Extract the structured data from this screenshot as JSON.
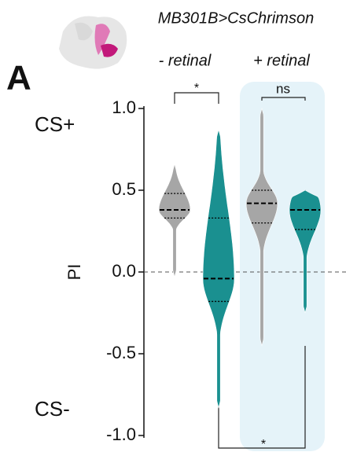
{
  "chart_data": {
    "type": "violin",
    "title": "MB301B>CsChrimson",
    "panel_label": "A",
    "group_labels": [
      "- retinal",
      "+ retinal"
    ],
    "y_label": "PI",
    "top_annotation": "CS+",
    "top_annotation_color": "#d7301f",
    "bottom_annotation": "CS-",
    "ylim": [
      -1,
      1
    ],
    "yticks": [
      {
        "value": 1,
        "label": "1.0"
      },
      {
        "value": 0.5,
        "label": "0.5"
      },
      {
        "value": 0,
        "label": "0.0"
      },
      {
        "value": -0.5,
        "label": "-0.5"
      },
      {
        "value": -1,
        "label": "-1.0"
      }
    ],
    "reference_line": 0,
    "violins": [
      {
        "color": "#a6a6a6",
        "min": -0.03,
        "q1": 0.33,
        "median": 0.38,
        "q3": 0.48,
        "max": 0.66
      },
      {
        "color": "#1a9090",
        "min": -0.83,
        "q1": -0.18,
        "median": -0.04,
        "q3": 0.33,
        "max": 0.87
      },
      {
        "color": "#a6a6a6",
        "min": -0.45,
        "q1": 0.3,
        "median": 0.42,
        "q3": 0.5,
        "max": 1.0
      },
      {
        "color": "#1a9090",
        "min": -0.25,
        "q1": 0.26,
        "median": 0.38,
        "q3": 0.5,
        "max": 0.5
      }
    ],
    "comparisons": [
      "*",
      "ns",
      "*"
    ]
  }
}
